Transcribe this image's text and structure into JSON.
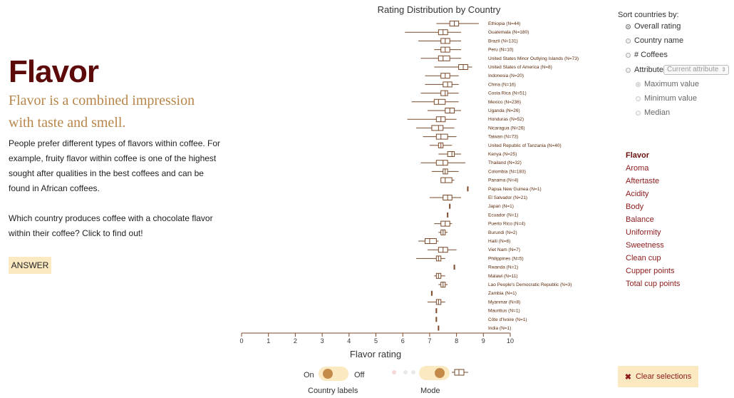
{
  "page": {
    "title": "Flavor",
    "subtitle": "Flavor is a combined impression with taste and smell.",
    "paragraph1": "People prefer different types of flavors within coffee. For example, fruity flavor within coffee is one of the highest sought after qualities in the best coffees and can be found in African coffees.",
    "paragraph2": "Which country produces coffee with a chocolate flavor within their coffee? Click to find out!",
    "answer_label": "ANSWER"
  },
  "sort": {
    "heading": "Sort countries by:",
    "options": [
      "Overall rating",
      "Country name",
      "# Coffees",
      "Attribute"
    ],
    "selected": "Overall rating",
    "attribute_placeholder": "Current attribute",
    "sub_options": [
      "Maximum value",
      "Minimum value",
      "Median"
    ]
  },
  "attributes": {
    "items": [
      "Flavor",
      "Aroma",
      "Aftertaste",
      "Acidity",
      "Body",
      "Balance",
      "Uniformity",
      "Sweetness",
      "Clean cup",
      "Cupper points",
      "Total cup points"
    ],
    "active": "Flavor"
  },
  "controls": {
    "clear_label": "Clear selections",
    "on_label": "On",
    "off_label": "Off",
    "country_labels_caption": "Country labels",
    "mode_caption": "Mode"
  },
  "colors": {
    "brand": "#5c0a0a",
    "accent": "#b8864a",
    "plot": "#7a4a2a",
    "button_bg": "#fbe9c2"
  },
  "chart_data": {
    "type": "boxplot",
    "title": "Rating Distribution by Country",
    "xlabel": "Flavor rating",
    "xlim": [
      0,
      10
    ],
    "xticks": [
      "0",
      "1",
      "2",
      "3",
      "4",
      "5",
      "6",
      "7",
      "8",
      "9",
      "10"
    ],
    "rows": [
      {
        "label": "Ethiopia (N=44)",
        "min": 7.25,
        "q1": 7.75,
        "median": 7.92,
        "q3": 8.08,
        "max": 8.83
      },
      {
        "label": "Guatemala (N=180)",
        "min": 6.08,
        "q1": 7.33,
        "median": 7.5,
        "q3": 7.67,
        "max": 8.17
      },
      {
        "label": "Brazil (N=131)",
        "min": 6.58,
        "q1": 7.42,
        "median": 7.58,
        "q3": 7.75,
        "max": 8.17
      },
      {
        "label": "Peru (N=10)",
        "min": 7.17,
        "q1": 7.42,
        "median": 7.58,
        "q3": 7.75,
        "max": 8.17
      },
      {
        "label": "United States Minor Outlying Islands (N=73)",
        "min": 6.67,
        "q1": 7.33,
        "median": 7.5,
        "q3": 7.75,
        "max": 8.17
      },
      {
        "label": "United States of America (N=8)",
        "min": 7.17,
        "q1": 8.08,
        "median": 8.25,
        "q3": 8.42,
        "max": 8.58
      },
      {
        "label": "Indonesia (N=20)",
        "min": 6.83,
        "q1": 7.42,
        "median": 7.58,
        "q3": 7.75,
        "max": 8.08
      },
      {
        "label": "China (N=16)",
        "min": 6.83,
        "q1": 7.5,
        "median": 7.67,
        "q3": 7.83,
        "max": 8.08
      },
      {
        "label": "Costa Rica (N=51)",
        "min": 6.67,
        "q1": 7.42,
        "median": 7.58,
        "q3": 7.67,
        "max": 8.08
      },
      {
        "label": "Mexico (N=236)",
        "min": 6.33,
        "q1": 7.17,
        "median": 7.33,
        "q3": 7.58,
        "max": 8.08
      },
      {
        "label": "Uganda (N=26)",
        "min": 6.92,
        "q1": 7.58,
        "median": 7.75,
        "q3": 7.92,
        "max": 8.17
      },
      {
        "label": "Honduras (N=52)",
        "min": 6.17,
        "q1": 7.25,
        "median": 7.42,
        "q3": 7.58,
        "max": 8.0
      },
      {
        "label": "Nicaragua (N=26)",
        "min": 6.5,
        "q1": 7.08,
        "median": 7.33,
        "q3": 7.5,
        "max": 7.92
      },
      {
        "label": "Taiwan (N=73)",
        "min": 6.75,
        "q1": 7.25,
        "median": 7.42,
        "q3": 7.67,
        "max": 8.0
      },
      {
        "label": "United Republic of Tanzania (N=40)",
        "min": 7.0,
        "q1": 7.33,
        "median": 7.42,
        "q3": 7.5,
        "max": 7.83
      },
      {
        "label": "Kenya (N=25)",
        "min": 7.33,
        "q1": 7.67,
        "median": 7.83,
        "q3": 7.92,
        "max": 8.17
      },
      {
        "label": "Thailand (N=32)",
        "min": 6.67,
        "q1": 7.25,
        "median": 7.5,
        "q3": 7.67,
        "max": 8.33
      },
      {
        "label": "Colombia (N=183)",
        "min": 7.08,
        "q1": 7.5,
        "median": 7.58,
        "q3": 7.67,
        "max": 8.08
      },
      {
        "label": "Panama (N=4)",
        "min": 7.42,
        "q1": 7.42,
        "median": 7.58,
        "q3": 7.83,
        "max": 7.92
      },
      {
        "label": "Papua New Guinea (N=1)",
        "min": 8.42,
        "q1": 8.42,
        "median": 8.42,
        "q3": 8.42,
        "max": 8.42
      },
      {
        "label": "El Salvador (N=21)",
        "min": 7.0,
        "q1": 7.5,
        "median": 7.67,
        "q3": 7.83,
        "max": 8.17
      },
      {
        "label": "Japan (N=1)",
        "min": 7.75,
        "q1": 7.75,
        "median": 7.75,
        "q3": 7.75,
        "max": 7.75
      },
      {
        "label": "Ecuador (N=1)",
        "min": 7.67,
        "q1": 7.67,
        "median": 7.67,
        "q3": 7.67,
        "max": 7.67
      },
      {
        "label": "Puerto Rico (N=4)",
        "min": 7.17,
        "q1": 7.42,
        "median": 7.58,
        "q3": 7.75,
        "max": 7.83
      },
      {
        "label": "Burundi (N=2)",
        "min": 7.33,
        "q1": 7.42,
        "median": 7.5,
        "q3": 7.58,
        "max": 7.67
      },
      {
        "label": "Haiti (N=6)",
        "min": 6.58,
        "q1": 6.83,
        "median": 7.0,
        "q3": 7.25,
        "max": 7.33
      },
      {
        "label": "Viet Nam (N=7)",
        "min": 6.92,
        "q1": 7.33,
        "median": 7.5,
        "q3": 7.67,
        "max": 8.0
      },
      {
        "label": "Philippines (N=5)",
        "min": 6.5,
        "q1": 7.25,
        "median": 7.33,
        "q3": 7.42,
        "max": 7.58
      },
      {
        "label": "Rwanda (N=1)",
        "min": 7.92,
        "q1": 7.92,
        "median": 7.92,
        "q3": 7.92,
        "max": 7.92
      },
      {
        "label": "Malawi (N=11)",
        "min": 7.17,
        "q1": 7.25,
        "median": 7.33,
        "q3": 7.42,
        "max": 7.58
      },
      {
        "label": "Lao People's Democratic Republic (N=3)",
        "min": 7.33,
        "q1": 7.42,
        "median": 7.5,
        "q3": 7.58,
        "max": 7.67
      },
      {
        "label": "Zambia (N=1)",
        "min": 7.08,
        "q1": 7.08,
        "median": 7.08,
        "q3": 7.08,
        "max": 7.08
      },
      {
        "label": "Myanmar (N=8)",
        "min": 6.92,
        "q1": 7.25,
        "median": 7.33,
        "q3": 7.42,
        "max": 7.58
      },
      {
        "label": "Mauritius (N=1)",
        "min": 7.25,
        "q1": 7.25,
        "median": 7.25,
        "q3": 7.25,
        "max": 7.25
      },
      {
        "label": "Côte d'Ivoire (N=1)",
        "min": 7.25,
        "q1": 7.25,
        "median": 7.25,
        "q3": 7.25,
        "max": 7.25
      },
      {
        "label": "India (N=1)",
        "min": 7.33,
        "q1": 7.33,
        "median": 7.33,
        "q3": 7.33,
        "max": 7.33
      }
    ]
  }
}
